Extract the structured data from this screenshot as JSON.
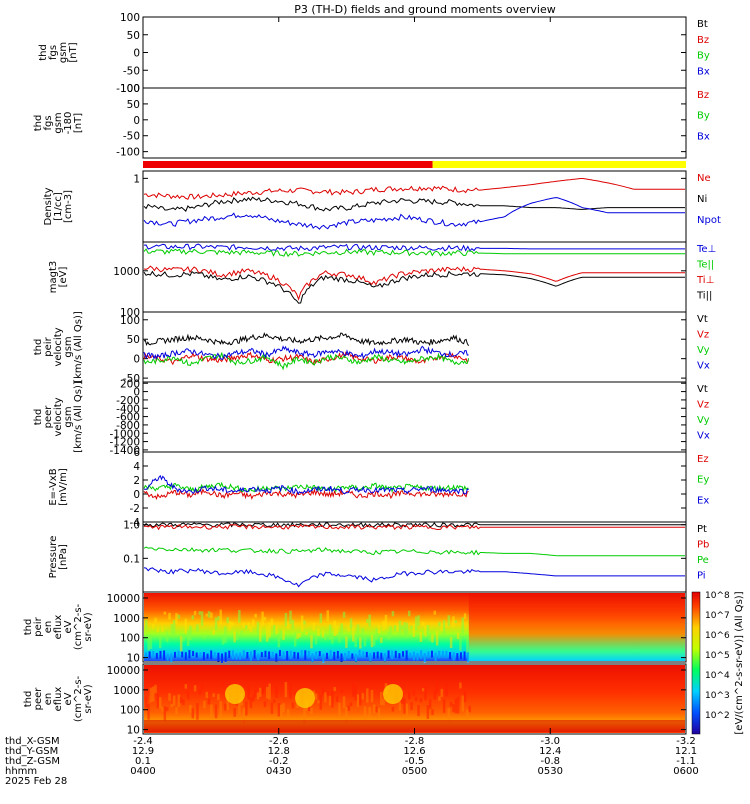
{
  "title": "P3 (TH-D) fields and ground moments overview",
  "colors": {
    "black": "#000000",
    "red": "#dd0000",
    "green": "#00cc00",
    "blue": "#0000dd",
    "bar_red": "#ee0000",
    "bar_yellow": "#ffff00"
  },
  "x_axis": {
    "ticks": [
      "0400",
      "0430",
      "0500",
      "0530",
      "0600"
    ],
    "date": "2025 Feb 28",
    "rows": [
      {
        "label": "thd_X-GSM",
        "values": [
          "-2.4",
          "-2.6",
          "-2.8",
          "-3.0",
          "-3.2"
        ]
      },
      {
        "label": "thd_Y-GSM",
        "values": [
          "12.9",
          "12.8",
          "12.6",
          "12.4",
          "12.1"
        ]
      },
      {
        "label": "thd_Z-GSM",
        "values": [
          "0.1",
          "-0.2",
          "-0.5",
          "-0.8",
          "-1.1"
        ]
      },
      {
        "label": "hhmm",
        "values": [
          "0400",
          "0430",
          "0500",
          "0530",
          "0600"
        ]
      }
    ]
  },
  "colorbar": {
    "label": "[eV/(cm^2-s-sr-eV)] (All Qs)]",
    "ticks": [
      "10^8",
      "10^7",
      "10^6",
      "10^5",
      "10^4",
      "10^3",
      "10^2"
    ]
  },
  "chart_data": [
    {
      "type": "line",
      "panel": "fgs",
      "ylabel": [
        "thd",
        "fgs",
        "gsm",
        "[nT]"
      ],
      "ylim": [
        -100,
        100
      ],
      "yticks": [
        "100",
        "50",
        "0",
        "-50",
        "-100"
      ],
      "legend": [
        "Bt",
        "Bz",
        "By",
        "Bx"
      ],
      "series": []
    },
    {
      "type": "line",
      "panel": "fgs2",
      "ylabel": [
        "thd",
        "fgs",
        "gsm",
        "-180",
        "[nT]"
      ],
      "ylim": [
        -120,
        100
      ],
      "yticks": [
        "100",
        "50",
        "0",
        "-50",
        "-100"
      ],
      "legend": [
        "Bz",
        "By",
        "Bx"
      ],
      "series": []
    },
    {
      "type": "bar",
      "panel": "mode",
      "segments": [
        {
          "x_start": "0400",
          "x_end": "0504",
          "color": "red"
        },
        {
          "x_start": "0504",
          "x_end": "0600",
          "color": "yellow"
        }
      ]
    },
    {
      "type": "line",
      "panel": "density",
      "ylabel": [
        "Density",
        "[1/cc]",
        "[cm-3]"
      ],
      "yscale": "log",
      "ylim": [
        0.03,
        1.5
      ],
      "yticks": [
        "1"
      ],
      "legend": [
        "Ne",
        "Ni",
        "Npot"
      ],
      "series": [
        {
          "name": "Ne",
          "values": [
            0.42,
            0.38,
            0.36,
            0.4,
            0.45,
            0.5,
            0.52,
            0.48,
            0.46,
            0.55,
            0.58,
            0.6,
            0.55,
            0.52,
            0.6,
            0.7,
            0.85,
            1.0,
            0.78,
            0.55,
            0.55,
            0.55
          ]
        },
        {
          "name": "Ni",
          "values": [
            0.22,
            0.17,
            0.2,
            0.28,
            0.32,
            0.3,
            0.25,
            0.18,
            0.2,
            0.26,
            0.3,
            0.28,
            0.27,
            0.22,
            0.22,
            0.2,
            0.2,
            0.18,
            0.2,
            0.2,
            0.2,
            0.2
          ]
        },
        {
          "name": "Npot",
          "values": [
            0.1,
            0.08,
            0.1,
            0.12,
            0.14,
            0.1,
            0.08,
            0.07,
            0.09,
            0.1,
            0.12,
            0.1,
            0.08,
            0.09,
            0.12,
            0.25,
            0.35,
            0.2,
            0.15,
            0.15,
            0.15,
            0.15
          ]
        }
      ]
    },
    {
      "type": "line",
      "panel": "temps",
      "ylabel": [
        "magt3",
        "[eV]"
      ],
      "yscale": "log",
      "ylim": [
        100,
        5000
      ],
      "yticks": [
        "1000",
        "100"
      ],
      "legend": [
        "Te⊥",
        "Te||",
        "Ti⊥",
        "Ti||"
      ],
      "series": [
        {
          "name": "Te⊥",
          "values": [
            4000,
            3800,
            3900,
            3700,
            3800,
            3600,
            3500,
            3700,
            3800,
            3700,
            3700,
            3600,
            3600,
            3500,
            3500,
            3400,
            3400,
            3400,
            3400,
            3400,
            3400,
            3400
          ]
        },
        {
          "name": "Te||",
          "values": [
            3000,
            2900,
            3000,
            2800,
            2800,
            2700,
            2600,
            2800,
            2900,
            2800,
            2800,
            2700,
            2700,
            2700,
            2600,
            2600,
            2600,
            2600,
            2600,
            2600,
            2600,
            2600
          ]
        },
        {
          "name": "Ti⊥",
          "values": [
            1200,
            1050,
            1100,
            800,
            1000,
            700,
            220,
            900,
            800,
            500,
            850,
            1000,
            1100,
            1100,
            1000,
            850,
            550,
            900,
            900,
            900,
            900,
            900
          ]
        },
        {
          "name": "Ti||",
          "values": [
            900,
            800,
            850,
            600,
            750,
            500,
            150,
            700,
            600,
            380,
            650,
            800,
            850,
            850,
            800,
            650,
            420,
            700,
            700,
            700,
            700,
            700
          ]
        }
      ]
    },
    {
      "type": "line",
      "panel": "vel1",
      "ylabel": [
        "thd",
        "peir",
        "velocity",
        "gsm",
        "[km/s (All Qs)]"
      ],
      "ylim": [
        -60,
        120
      ],
      "yticks": [
        "100",
        "50",
        "0",
        "-50"
      ],
      "legend": [
        "Vt",
        "Vz",
        "Vy",
        "Vx"
      ],
      "series": [
        {
          "name": "Vt",
          "values": [
            40,
            45,
            50,
            55,
            50,
            40,
            45,
            55,
            60,
            50,
            45,
            50,
            55,
            60,
            45,
            40,
            45,
            50,
            40,
            45,
            55,
            40
          ]
        },
        {
          "name": "Vz",
          "values": [
            5,
            0,
            -10,
            10,
            0,
            -5,
            5,
            10,
            -5,
            0,
            5,
            -10,
            0,
            10,
            0,
            -5,
            5,
            0,
            -10,
            5,
            10,
            -5
          ]
        },
        {
          "name": "Vy",
          "values": [
            -10,
            -5,
            5,
            -15,
            0,
            10,
            -10,
            -5,
            5,
            -20,
            0,
            -10,
            5,
            0,
            -10,
            5,
            -5,
            -10,
            0,
            5,
            -10,
            -5
          ]
        },
        {
          "name": "Vx",
          "values": [
            10,
            5,
            15,
            20,
            10,
            5,
            15,
            20,
            10,
            25,
            15,
            10,
            20,
            15,
            5,
            20,
            15,
            10,
            25,
            15,
            10,
            15
          ]
        }
      ]
    },
    {
      "type": "line",
      "panel": "vel2",
      "ylabel": [
        "thd",
        "peer",
        "velocity",
        "gsm",
        "[km/s (All Qs)]"
      ],
      "ylim": [
        -1450,
        230
      ],
      "yticks": [
        "200",
        "0",
        "-200",
        "-400",
        "-600",
        "-800",
        "-1000",
        "-1200",
        "-1400"
      ],
      "legend": [
        "Vt",
        "Vz",
        "Vy",
        "Vx"
      ],
      "series": []
    },
    {
      "type": "line",
      "panel": "efield",
      "ylabel": [
        "E=-VxB",
        "[mV/m]"
      ],
      "ylim": [
        -4,
        6
      ],
      "yticks": [
        "6",
        "4",
        "2",
        "0",
        "-2",
        "-4"
      ],
      "legend": [
        "Ez",
        "Ey",
        "Ex"
      ],
      "series": [
        {
          "name": "Ez",
          "values": [
            0.2,
            -0.5,
            0.3,
            -0.2,
            0.5,
            -0.3,
            0.1,
            -0.4,
            0.2,
            0.0,
            -0.2,
            0.3,
            -0.1,
            0.2,
            -0.3,
            0.1,
            -0.2,
            0.2,
            0.0,
            -0.1,
            0.1,
            0.0
          ]
        },
        {
          "name": "Ey",
          "values": [
            1.0,
            0.8,
            1.2,
            0.6,
            1.0,
            1.4,
            0.8,
            0.5,
            1.0,
            0.7,
            1.1,
            0.9,
            0.6,
            1.0,
            0.8,
            1.2,
            0.7,
            1.0,
            0.9,
            0.8,
            1.0,
            0.8
          ]
        },
        {
          "name": "Ex",
          "values": [
            0.5,
            2.5,
            0.8,
            0.3,
            0.9,
            0.6,
            0.4,
            0.8,
            0.5,
            0.9,
            0.3,
            0.6,
            0.8,
            0.4,
            0.7,
            0.5,
            0.6,
            0.4,
            0.8,
            0.6,
            0.5,
            0.4
          ]
        }
      ]
    },
    {
      "type": "line",
      "panel": "pressure",
      "ylabel": [
        "Pressure",
        "[nPa]"
      ],
      "yscale": "log",
      "ylim": [
        0.01,
        1.2
      ],
      "yticks": [
        "1.0",
        "0.1"
      ],
      "legend": [
        "Pt",
        "Pb",
        "Pe",
        "Pi"
      ],
      "series": [
        {
          "name": "Pt",
          "values": [
            1.0,
            1.0,
            1.0,
            1.0,
            1.0,
            1.0,
            1.0,
            1.0,
            1.0,
            1.0,
            1.0,
            1.0,
            1.0,
            1.0,
            1.0,
            1.0,
            1.0,
            1.0,
            1.0,
            1.0,
            1.0,
            1.0
          ]
        },
        {
          "name": "Pb",
          "values": [
            0.85,
            0.86,
            0.86,
            0.87,
            0.87,
            0.86,
            0.86,
            0.86,
            0.85,
            0.85,
            0.85,
            0.85,
            0.84,
            0.84,
            0.84,
            0.84,
            0.84,
            0.84,
            0.84,
            0.84,
            0.84,
            0.84
          ]
        },
        {
          "name": "Pe",
          "values": [
            0.2,
            0.19,
            0.18,
            0.18,
            0.17,
            0.17,
            0.16,
            0.18,
            0.16,
            0.15,
            0.16,
            0.16,
            0.15,
            0.15,
            0.14,
            0.14,
            0.12,
            0.12,
            0.12,
            0.12,
            0.12,
            0.12
          ]
        },
        {
          "name": "Pi",
          "values": [
            0.05,
            0.04,
            0.045,
            0.035,
            0.04,
            0.03,
            0.015,
            0.035,
            0.03,
            0.022,
            0.035,
            0.04,
            0.04,
            0.04,
            0.04,
            0.035,
            0.03,
            0.03,
            0.03,
            0.03,
            0.03,
            0.03
          ]
        }
      ]
    },
    {
      "type": "heatmap",
      "panel": "ion_spec",
      "ylabel": [
        "thd",
        "peir",
        "en",
        "eflux",
        "eV",
        "(cm^2-s-",
        "sr-eV)"
      ],
      "yscale": "log",
      "ylim": [
        6,
        20000
      ],
      "yticks": [
        "10000",
        "1000",
        "100",
        "10"
      ]
    },
    {
      "type": "heatmap",
      "panel": "elec_spec",
      "ylabel": [
        "thd",
        "peer",
        "en",
        "eflux",
        "eV",
        "(cm^2-s-",
        "sr-eV)"
      ],
      "yscale": "log",
      "ylim": [
        6,
        20000
      ],
      "yticks": [
        "10000",
        "1000",
        "100",
        "10"
      ]
    }
  ]
}
